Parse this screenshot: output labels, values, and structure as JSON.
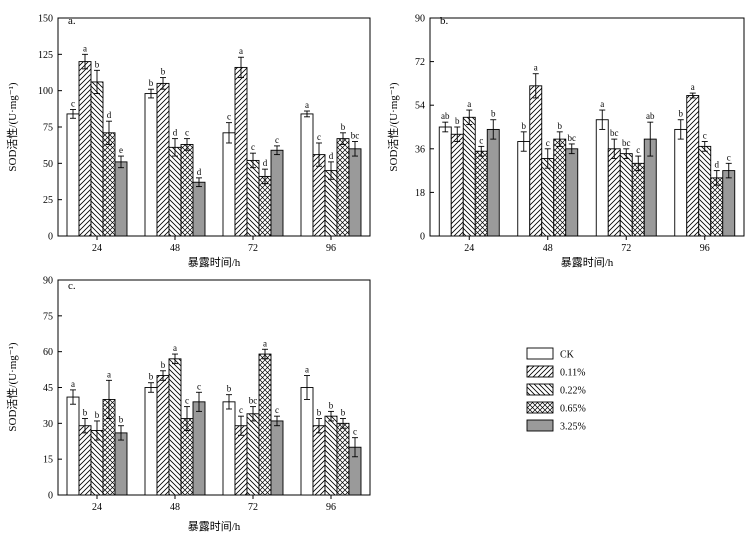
{
  "series_names": [
    "CK",
    "0.11%",
    "0.22%",
    "0.65%",
    "3.25%"
  ],
  "xlabel": "暴露时间/h",
  "ylabel": "SOD活性/(U·mg⁻¹)",
  "chart_data": [
    {
      "type": "bar",
      "panel": "a.",
      "categories": [
        "24",
        "48",
        "72",
        "96"
      ],
      "ylim": [
        0,
        150
      ],
      "yticks": [
        0,
        25,
        50,
        75,
        100,
        125,
        150
      ],
      "xlabel": "暴露时间/h",
      "ylabel": "SOD活性/(U·mg⁻¹)",
      "series": [
        {
          "name": "CK",
          "values": [
            84,
            98,
            71,
            84
          ],
          "errors": [
            3,
            3,
            7,
            2
          ],
          "letters": [
            "c",
            "b",
            "c",
            "a"
          ]
        },
        {
          "name": "0.11%",
          "values": [
            120,
            105,
            116,
            56
          ],
          "errors": [
            5,
            4,
            7,
            8
          ],
          "letters": [
            "a",
            "b",
            "a",
            "c"
          ]
        },
        {
          "name": "0.22%",
          "values": [
            106,
            61,
            52,
            45
          ],
          "errors": [
            8,
            6,
            5,
            6
          ],
          "letters": [
            "b",
            "d",
            "c",
            "d"
          ]
        },
        {
          "name": "0.65%",
          "values": [
            71,
            63,
            41,
            67
          ],
          "errors": [
            8,
            4,
            5,
            4
          ],
          "letters": [
            "d",
            "c",
            "d",
            "b"
          ]
        },
        {
          "name": "3.25%",
          "values": [
            51,
            37,
            59,
            60
          ],
          "errors": [
            4,
            3,
            3,
            5
          ],
          "letters": [
            "e",
            "d",
            "c",
            "bc"
          ]
        }
      ]
    },
    {
      "type": "bar",
      "panel": "b.",
      "categories": [
        "24",
        "48",
        "72",
        "96"
      ],
      "ylim": [
        0,
        90
      ],
      "yticks": [
        0,
        18,
        36,
        54,
        72,
        90
      ],
      "xlabel": "暴露时间/h",
      "ylabel": "SOD活性/(U·mg⁻¹)",
      "series": [
        {
          "name": "CK",
          "values": [
            45,
            39,
            48,
            44
          ],
          "errors": [
            2,
            4,
            4,
            4
          ],
          "letters": [
            "ab",
            "b",
            "a",
            "b"
          ]
        },
        {
          "name": "0.11%",
          "values": [
            42,
            62,
            36,
            58
          ],
          "errors": [
            3,
            5,
            4,
            1
          ],
          "letters": [
            "b",
            "a",
            "bc",
            "a"
          ]
        },
        {
          "name": "0.22%",
          "values": [
            49,
            32,
            34,
            37
          ],
          "errors": [
            3,
            4,
            2,
            2
          ],
          "letters": [
            "a",
            "c",
            "bc",
            "c"
          ]
        },
        {
          "name": "0.65%",
          "values": [
            35,
            40,
            30,
            24
          ],
          "errors": [
            2,
            3,
            3,
            3
          ],
          "letters": [
            "c",
            "b",
            "c",
            "d"
          ]
        },
        {
          "name": "3.25%",
          "values": [
            44,
            36,
            40,
            27
          ],
          "errors": [
            4,
            2,
            7,
            3
          ],
          "letters": [
            "b",
            "bc",
            "ab",
            "c"
          ]
        }
      ]
    },
    {
      "type": "bar",
      "panel": "c.",
      "categories": [
        "24",
        "48",
        "72",
        "96"
      ],
      "ylim": [
        0,
        90
      ],
      "yticks": [
        0,
        15,
        30,
        45,
        60,
        75,
        90
      ],
      "xlabel": "暴露时间/h",
      "ylabel": "SOD活性/(U·mg⁻¹)",
      "series": [
        {
          "name": "CK",
          "values": [
            41,
            45,
            39,
            45
          ],
          "errors": [
            3,
            2,
            3,
            5
          ],
          "letters": [
            "a",
            "b",
            "b",
            "a"
          ]
        },
        {
          "name": "0.11%",
          "values": [
            29,
            50,
            29,
            29
          ],
          "errors": [
            3,
            2,
            4,
            3
          ],
          "letters": [
            "b",
            "b",
            "c",
            "b"
          ]
        },
        {
          "name": "0.22%",
          "values": [
            27,
            57,
            34,
            33
          ],
          "errors": [
            4,
            2,
            3,
            2
          ],
          "letters": [
            "b",
            "a",
            "bc",
            "b"
          ]
        },
        {
          "name": "0.65%",
          "values": [
            40,
            32,
            59,
            30
          ],
          "errors": [
            8,
            5,
            2,
            2
          ],
          "letters": [
            "a",
            "c",
            "a",
            "b"
          ]
        },
        {
          "name": "3.25%",
          "values": [
            26,
            39,
            31,
            20
          ],
          "errors": [
            3,
            4,
            2,
            4
          ],
          "letters": [
            "b",
            "c",
            "c",
            "c"
          ]
        }
      ]
    }
  ]
}
